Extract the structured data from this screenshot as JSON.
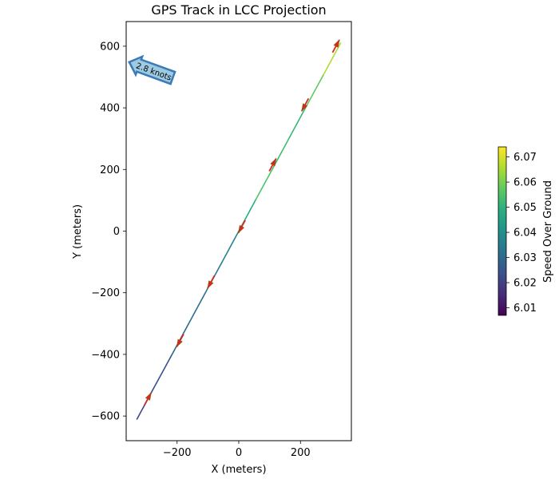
{
  "chart_data": {
    "type": "line",
    "title": "GPS Track in LCC Projection",
    "xlabel": "X (meters)",
    "ylabel": "Y (meters)",
    "xlim": [
      -365,
      365
    ],
    "ylim": [
      -680,
      680
    ],
    "xticks": [
      -200,
      0,
      200
    ],
    "yticks": [
      -600,
      -400,
      -200,
      0,
      200,
      400,
      600
    ],
    "xtick_labels": [
      "−200",
      "0",
      "200"
    ],
    "ytick_labels": [
      "−600",
      "−400",
      "−200",
      "0",
      "200",
      "400",
      "600"
    ],
    "grid": false,
    "colormap": "viridis",
    "colorbar": {
      "label": "Speed Over Ground",
      "range": [
        6.007,
        6.074
      ],
      "ticks": [
        6.01,
        6.02,
        6.03,
        6.04,
        6.05,
        6.06,
        6.07
      ],
      "tick_labels": [
        "6.01",
        "6.02",
        "6.03",
        "6.04",
        "6.05",
        "6.06",
        "6.07"
      ]
    },
    "series": [
      {
        "x": [
          -330,
          -275,
          -220,
          -165,
          -110,
          -55,
          0,
          55,
          110,
          165,
          220,
          275,
          330
        ],
        "y": [
          -610,
          -508,
          -407,
          -305,
          -203,
          -102,
          0,
          102,
          203,
          305,
          407,
          508,
          610
        ],
        "speed": [
          6.03,
          6.012,
          6.035,
          6.022,
          6.04,
          6.028,
          6.045,
          6.052,
          6.058,
          6.048,
          6.055,
          6.06,
          6.072
        ]
      }
    ],
    "arrows": {
      "color": "#d62728",
      "points": [
        {
          "x": -295,
          "y": -545,
          "dir": "up"
        },
        {
          "x": -190,
          "y": -355,
          "dir": "down"
        },
        {
          "x": -90,
          "y": -165,
          "dir": "down"
        },
        {
          "x": 10,
          "y": 15,
          "dir": "down"
        },
        {
          "x": 110,
          "y": 215,
          "dir": "up"
        },
        {
          "x": 215,
          "y": 410,
          "dir": "down"
        },
        {
          "x": 315,
          "y": 600,
          "dir": "up"
        }
      ]
    },
    "annotation": {
      "text": "2.8 knots",
      "fill": "#9ecae1",
      "edge": "#3a7ab8"
    }
  }
}
